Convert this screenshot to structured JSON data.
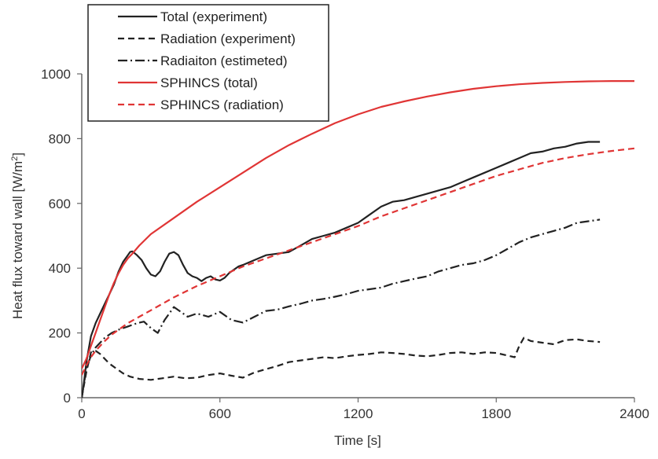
{
  "chart_data": {
    "type": "line",
    "xlabel": "Time [s]",
    "ylabel": "Heat flux toward wall [W/m",
    "ylabel_sup": "2",
    "ylabel_end": "]",
    "xlim": [
      0,
      2400
    ],
    "ylim": [
      0,
      1000
    ],
    "x_ticks": [
      0,
      600,
      1200,
      1800,
      2400
    ],
    "x_tick_labels": [
      "0",
      "600",
      "1200",
      "1800",
      "2400"
    ],
    "y_ticks": [
      0,
      200,
      400,
      600,
      800,
      1000
    ],
    "y_tick_labels": [
      "0",
      "200",
      "400",
      "600",
      "800",
      "1000"
    ],
    "grid": false,
    "legend_position": "top-left",
    "series": [
      {
        "name": "Total (experiment)",
        "color": "#222222",
        "dash": "solid",
        "x": [
          0,
          10,
          20,
          40,
          60,
          80,
          100,
          120,
          140,
          160,
          180,
          200,
          210,
          220,
          240,
          260,
          280,
          300,
          320,
          340,
          360,
          380,
          400,
          420,
          440,
          460,
          480,
          500,
          520,
          540,
          560,
          580,
          600,
          620,
          640,
          660,
          680,
          700,
          750,
          800,
          850,
          900,
          950,
          1000,
          1050,
          1100,
          1150,
          1200,
          1250,
          1300,
          1350,
          1400,
          1450,
          1500,
          1550,
          1600,
          1650,
          1700,
          1750,
          1800,
          1850,
          1900,
          1950,
          2000,
          2050,
          2100,
          2150,
          2200,
          2250
        ],
        "y": [
          0,
          50,
          110,
          190,
          230,
          260,
          290,
          320,
          350,
          390,
          420,
          440,
          450,
          452,
          440,
          425,
          400,
          380,
          375,
          390,
          420,
          445,
          450,
          440,
          410,
          385,
          375,
          370,
          360,
          370,
          375,
          365,
          362,
          370,
          385,
          395,
          405,
          410,
          425,
          440,
          445,
          450,
          470,
          490,
          500,
          510,
          525,
          540,
          565,
          590,
          605,
          610,
          620,
          630,
          640,
          650,
          665,
          680,
          695,
          710,
          725,
          740,
          755,
          760,
          770,
          775,
          785,
          790,
          790
        ]
      },
      {
        "name": "Radiation (experiment)",
        "color": "#222222",
        "dash": "dashed",
        "x": [
          0,
          10,
          20,
          40,
          60,
          80,
          100,
          120,
          150,
          180,
          210,
          250,
          300,
          350,
          400,
          450,
          500,
          550,
          600,
          650,
          700,
          750,
          800,
          850,
          900,
          950,
          1000,
          1050,
          1100,
          1150,
          1200,
          1250,
          1300,
          1350,
          1400,
          1450,
          1500,
          1550,
          1600,
          1650,
          1700,
          1750,
          1800,
          1850,
          1880,
          1900,
          1920,
          1950,
          2000,
          2050,
          2100,
          2150,
          2200,
          2250
        ],
        "y": [
          0,
          40,
          80,
          140,
          145,
          135,
          120,
          105,
          90,
          75,
          65,
          58,
          55,
          60,
          65,
          60,
          62,
          70,
          75,
          68,
          62,
          78,
          88,
          98,
          110,
          115,
          120,
          125,
          122,
          128,
          132,
          135,
          140,
          138,
          135,
          130,
          128,
          132,
          138,
          140,
          135,
          140,
          138,
          130,
          125,
          160,
          185,
          175,
          170,
          165,
          178,
          180,
          175,
          172
        ]
      },
      {
        "name": "Radiaiton (estimeted)",
        "color": "#222222",
        "dash": "dashdot",
        "x": [
          0,
          20,
          40,
          60,
          80,
          100,
          130,
          160,
          200,
          240,
          270,
          300,
          330,
          360,
          400,
          430,
          460,
          500,
          550,
          600,
          650,
          700,
          750,
          800,
          850,
          900,
          950,
          1000,
          1050,
          1100,
          1150,
          1200,
          1250,
          1300,
          1350,
          1400,
          1450,
          1500,
          1550,
          1600,
          1650,
          1700,
          1750,
          1800,
          1850,
          1900,
          1950,
          2000,
          2050,
          2100,
          2150,
          2200,
          2250
        ],
        "y": [
          0,
          90,
          130,
          155,
          170,
          185,
          200,
          210,
          220,
          230,
          235,
          215,
          200,
          240,
          280,
          265,
          250,
          260,
          250,
          265,
          240,
          232,
          250,
          268,
          272,
          282,
          290,
          300,
          305,
          312,
          320,
          330,
          335,
          340,
          352,
          360,
          368,
          375,
          390,
          400,
          410,
          415,
          425,
          440,
          460,
          480,
          495,
          505,
          515,
          525,
          540,
          545,
          550
        ]
      },
      {
        "name": "SPHINCS (total)",
        "color": "#e03535",
        "dash": "solid",
        "x": [
          0,
          20,
          40,
          60,
          80,
          100,
          120,
          140,
          160,
          180,
          200,
          220,
          250,
          300,
          400,
          500,
          600,
          700,
          800,
          900,
          1000,
          1100,
          1200,
          1300,
          1400,
          1500,
          1600,
          1700,
          1800,
          1900,
          2000,
          2100,
          2200,
          2300,
          2400
        ],
        "y": [
          90,
          120,
          160,
          200,
          240,
          280,
          320,
          355,
          385,
          410,
          430,
          445,
          470,
          505,
          555,
          605,
          650,
          695,
          740,
          780,
          815,
          848,
          875,
          898,
          915,
          930,
          943,
          954,
          962,
          968,
          972,
          975,
          977,
          978,
          978
        ]
      },
      {
        "name": "SPHINCS (radiation)",
        "color": "#e03535",
        "dash": "dashed",
        "x": [
          0,
          20,
          40,
          60,
          80,
          100,
          130,
          160,
          200,
          250,
          300,
          400,
          500,
          600,
          700,
          800,
          900,
          1000,
          1100,
          1200,
          1300,
          1400,
          1500,
          1600,
          1700,
          1800,
          1900,
          2000,
          2100,
          2200,
          2300,
          2400
        ],
        "y": [
          70,
          100,
          125,
          145,
          160,
          175,
          195,
          210,
          230,
          250,
          270,
          310,
          345,
          375,
          405,
          430,
          455,
          480,
          505,
          530,
          560,
          585,
          610,
          635,
          660,
          685,
          705,
          725,
          740,
          752,
          762,
          770
        ]
      }
    ]
  }
}
